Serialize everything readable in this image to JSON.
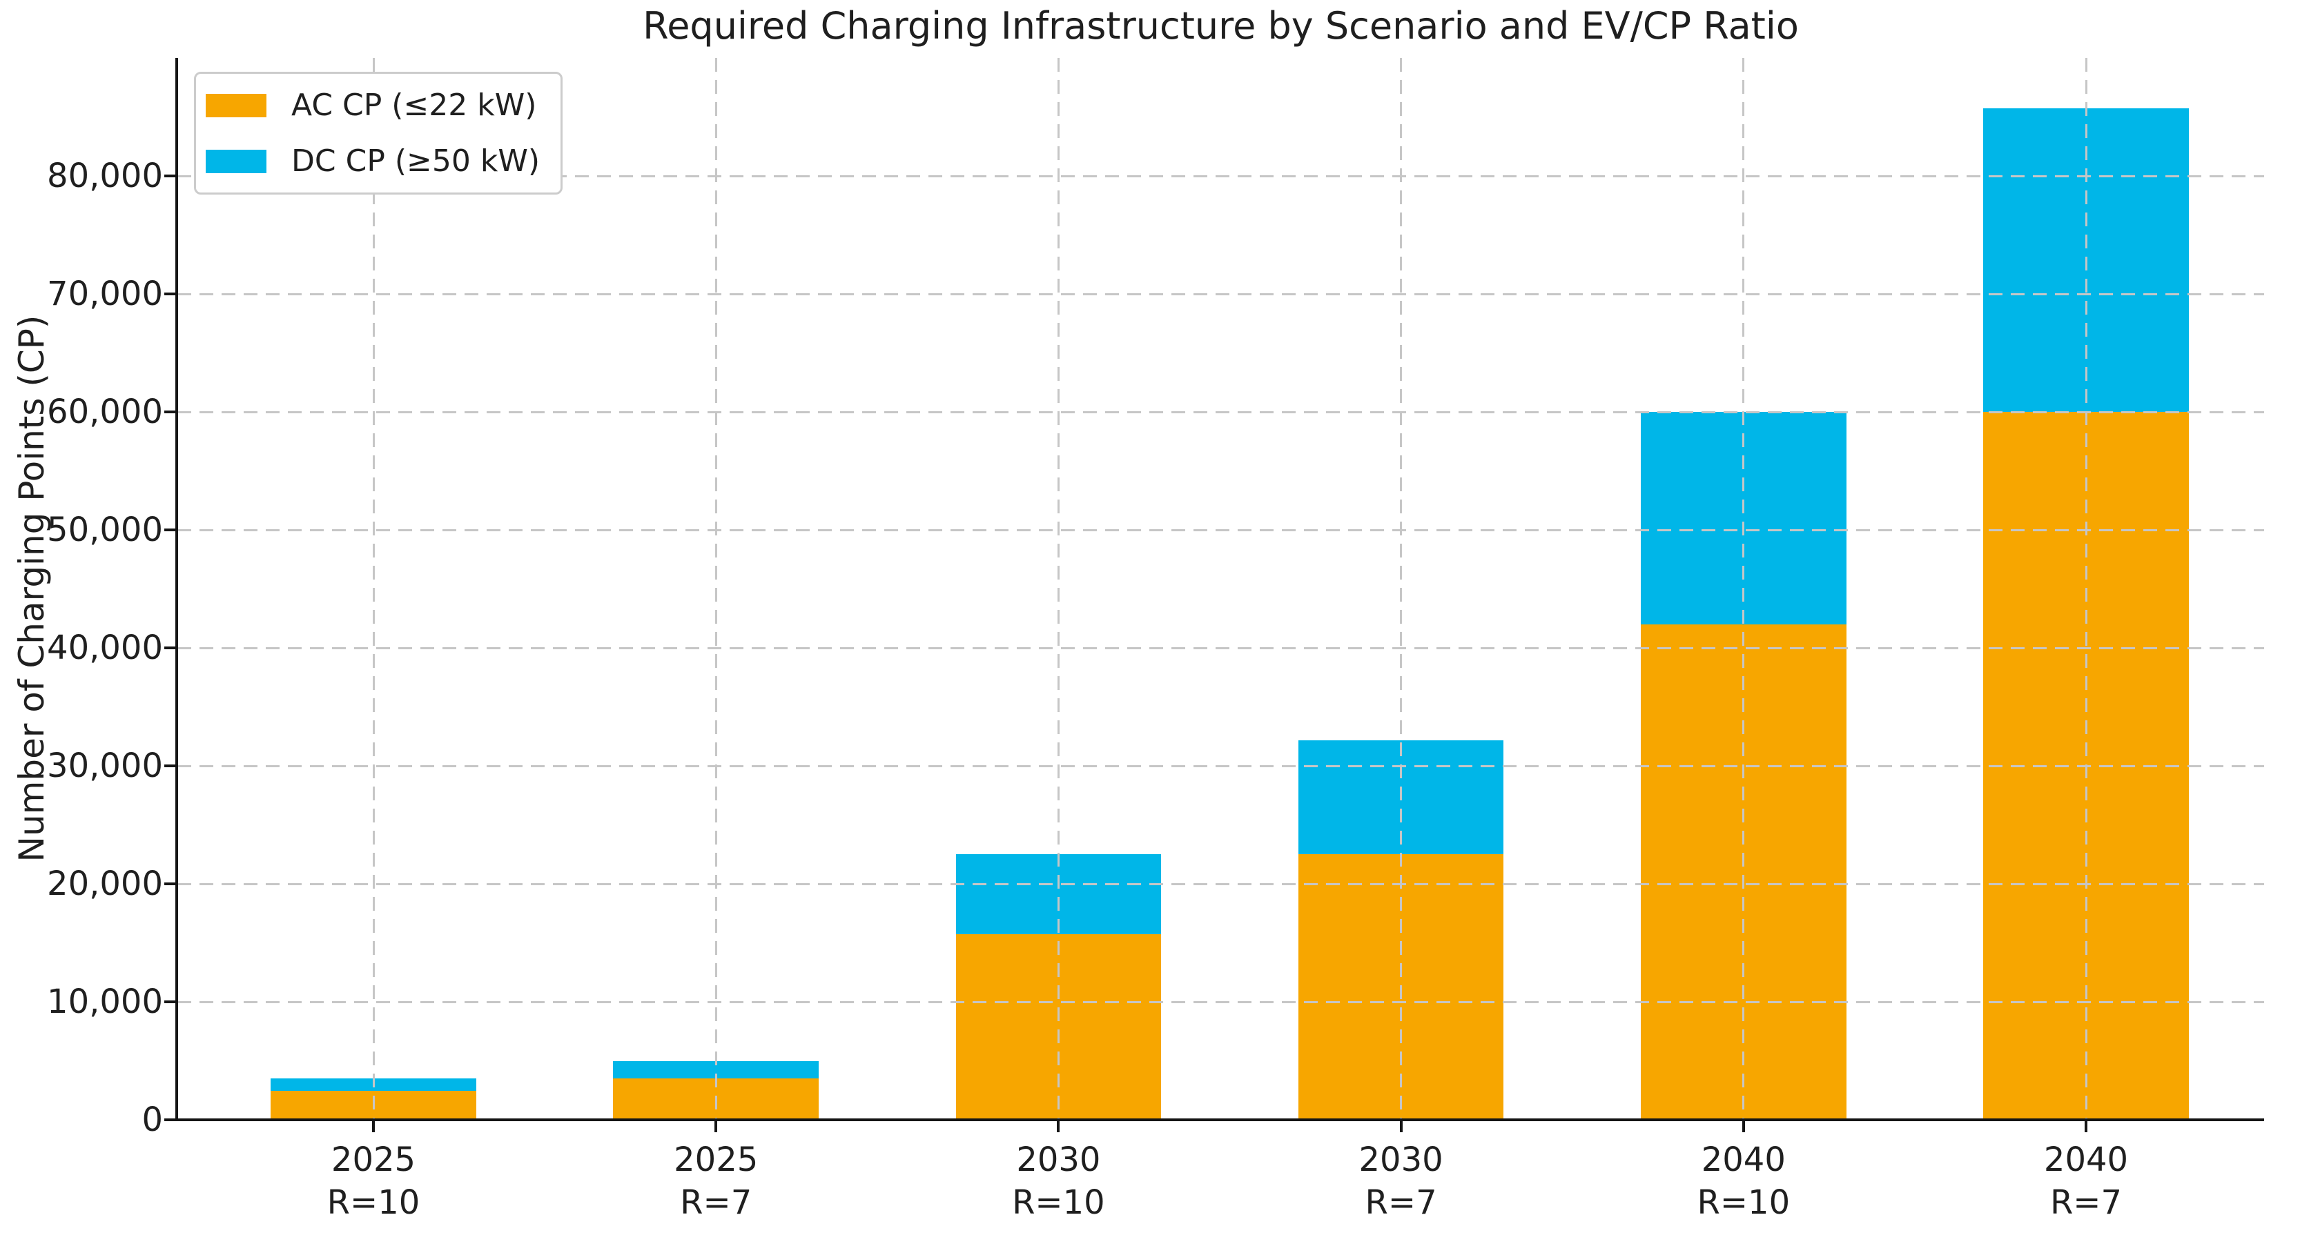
{
  "chart_data": {
    "type": "bar",
    "stacked": true,
    "title": "Required Charging Infrastructure by Scenario and EV/CP Ratio",
    "xlabel": "",
    "ylabel": "Number of Charging Points (CP)",
    "categories": [
      [
        "2025",
        "R=10"
      ],
      [
        "2025",
        "R=7"
      ],
      [
        "2030",
        "R=10"
      ],
      [
        "2030",
        "R=7"
      ],
      [
        "2040",
        "R=10"
      ],
      [
        "2040",
        "R=7"
      ]
    ],
    "series": [
      {
        "name": "AC CP (≤22 kW)",
        "color": "#F7A600",
        "values": [
          2450,
          3500,
          15750,
          22500,
          42000,
          60000
        ]
      },
      {
        "name": "DC CP (≥50 kW)",
        "color": "#00B6E8",
        "values": [
          1050,
          1500,
          6750,
          9643,
          18000,
          25714
        ]
      }
    ],
    "ylim": [
      0,
      90000
    ],
    "yticks": [
      0,
      10000,
      20000,
      30000,
      40000,
      50000,
      60000,
      70000,
      80000
    ],
    "ytick_labels": [
      "0",
      "10,000",
      "20,000",
      "30,000",
      "40,000",
      "50,000",
      "60,000",
      "70,000",
      "80,000"
    ],
    "grid": true,
    "grid_style": "dashed",
    "legend_position": "upper left"
  },
  "colors": {
    "ac": "#F7A600",
    "dc": "#00B6E8",
    "grid": "#C6C6C6",
    "axis": "#151515",
    "text": "#1F1F1F",
    "legend_border": "#CCCCCC",
    "background": "#FFFFFF"
  }
}
